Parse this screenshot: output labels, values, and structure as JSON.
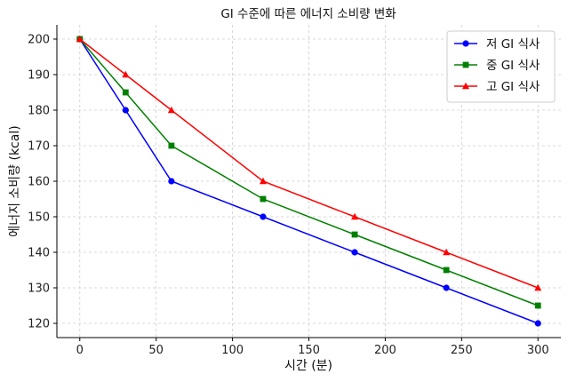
{
  "chart_data": {
    "type": "line",
    "title": "GI 수준에 따른 에너지 소비량 변화",
    "xlabel": "시간 (분)",
    "ylabel": "에너지 소비량 (kcal)",
    "x": [
      0,
      30,
      60,
      120,
      180,
      240,
      300
    ],
    "xlim": [
      -15,
      315
    ],
    "ylim": [
      116,
      204
    ],
    "xticks": [
      0,
      50,
      100,
      150,
      200,
      250,
      300
    ],
    "yticks": [
      120,
      130,
      140,
      150,
      160,
      170,
      180,
      190,
      200
    ],
    "grid": true,
    "legend_position": "top-right",
    "series": [
      {
        "name": "저 GI 식사",
        "values": [
          200,
          180,
          160,
          150,
          140,
          130,
          120
        ],
        "color": "#0000ff",
        "marker": "circle"
      },
      {
        "name": "중 GI 식사",
        "values": [
          200,
          185,
          170,
          155,
          145,
          135,
          125
        ],
        "color": "#008000",
        "marker": "square"
      },
      {
        "name": "고 GI 식사",
        "values": [
          200,
          190,
          180,
          160,
          150,
          140,
          130
        ],
        "color": "#ff0000",
        "marker": "triangle"
      }
    ]
  }
}
